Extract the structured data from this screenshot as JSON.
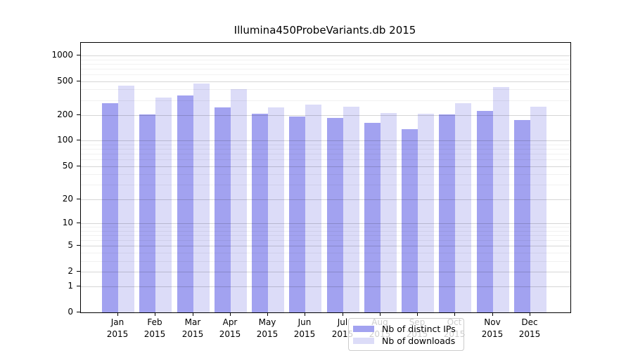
{
  "chart_data": {
    "type": "bar",
    "title": "Illumina450ProbeVariants.db 2015",
    "categories": [
      "Jan",
      "Feb",
      "Mar",
      "Apr",
      "May",
      "Jun",
      "Jul",
      "Aug",
      "Sep",
      "Oct",
      "Nov",
      "Dec"
    ],
    "year_label": "2015",
    "series": [
      {
        "name": "Nb of distinct IPs",
        "color": "#a2a2f0",
        "values": [
          277,
          204,
          340,
          246,
          206,
          193,
          185,
          162,
          137,
          204,
          224,
          175
        ]
      },
      {
        "name": "Nb of downloads",
        "color": "#dcdcf8",
        "values": [
          443,
          320,
          469,
          403,
          248,
          266,
          251,
          212,
          208,
          277,
          427,
          251
        ]
      }
    ],
    "y_axis": {
      "scale": "log1p",
      "ticks": [
        1000,
        500,
        200,
        100,
        50,
        20,
        10,
        5,
        2,
        1,
        0
      ],
      "minor_gridlines": [
        3,
        4,
        6,
        7,
        8,
        9,
        30,
        40,
        60,
        70,
        80,
        90,
        300,
        400,
        600,
        700,
        800,
        900
      ],
      "range": [
        0,
        1400
      ]
    },
    "xlabel": "",
    "ylabel": "",
    "grid": true,
    "legend_position": "lower center"
  }
}
